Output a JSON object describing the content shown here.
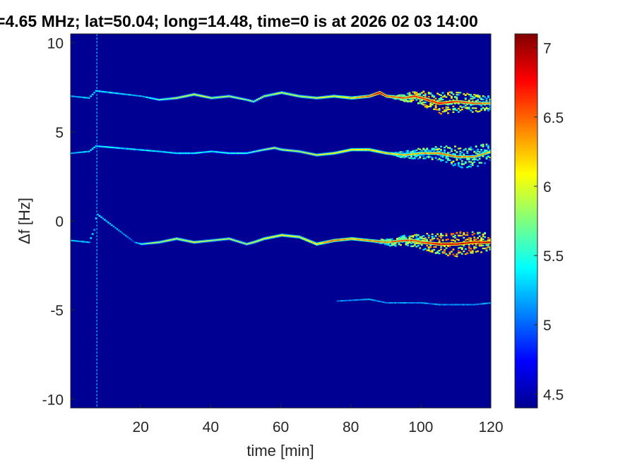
{
  "chart_data": {
    "type": "heatmap",
    "title": "=4.65 MHz;  lat=50.04; long=14.48, time=0 is at 2026 02 03 14:00",
    "xlabel": "time [min]",
    "ylabel": "Δf [Hz]",
    "xlim": [
      0,
      120
    ],
    "ylim": [
      -10.5,
      10.5
    ],
    "xticks": [
      20,
      40,
      60,
      80,
      100,
      120
    ],
    "xtick_labels": [
      "20",
      "40",
      "60",
      "80",
      "100",
      "120"
    ],
    "yticks": [
      10,
      5,
      0,
      -5,
      -10
    ],
    "ytick_labels": [
      "10",
      "5",
      "0",
      "-5",
      "-10"
    ],
    "colorbar": {
      "range": [
        4.4,
        7.1
      ],
      "ticks": [
        7,
        6.5,
        6,
        5.5,
        5,
        4.5
      ],
      "tick_labels": [
        "7",
        "6.5",
        "6",
        "5.5",
        "5",
        "4.5"
      ],
      "colormap": "jet"
    },
    "background_value": 4.45,
    "vertical_lines": [
      {
        "x": 7.5,
        "value": 5.2
      }
    ],
    "traces": [
      {
        "x": [
          0,
          5,
          7,
          20,
          25,
          30,
          35,
          40,
          45,
          50,
          52,
          55,
          60,
          65,
          70,
          75,
          80,
          85,
          88,
          90,
          95,
          98,
          100,
          105,
          110,
          115,
          120
        ],
        "y": [
          7.0,
          6.9,
          7.3,
          7.0,
          6.8,
          6.9,
          7.1,
          6.9,
          7.0,
          6.8,
          6.7,
          7.0,
          7.2,
          7.0,
          6.9,
          7.0,
          6.9,
          7.0,
          7.2,
          7.0,
          6.9,
          7.0,
          6.9,
          6.6,
          6.7,
          6.6,
          6.6
        ],
        "peak": [
          5.2,
          5.3,
          5.4,
          5.2,
          5.6,
          5.8,
          5.9,
          5.8,
          5.8,
          5.7,
          5.7,
          5.8,
          5.9,
          5.9,
          5.9,
          6.0,
          6.2,
          6.4,
          6.8,
          6.5,
          6.5,
          6.7,
          6.7,
          6.8,
          6.6,
          6.5,
          6.3
        ],
        "spread": [
          0,
          0,
          0,
          0,
          0,
          0,
          0,
          0,
          0,
          0,
          0,
          0,
          0,
          0,
          0,
          0,
          0,
          0,
          0,
          0,
          0.2,
          0.3,
          0.4,
          0.6,
          0.6,
          0.5,
          0.4
        ]
      },
      {
        "x": [
          0,
          5,
          7,
          25,
          30,
          35,
          40,
          45,
          50,
          55,
          58,
          60,
          65,
          70,
          75,
          80,
          85,
          90,
          95,
          100,
          105,
          110,
          115,
          120
        ],
        "y": [
          3.8,
          3.9,
          4.2,
          3.9,
          3.8,
          3.8,
          3.9,
          3.8,
          3.8,
          4.0,
          4.1,
          4.0,
          3.9,
          3.7,
          3.8,
          4.0,
          4.0,
          3.8,
          3.7,
          3.8,
          3.8,
          3.6,
          3.6,
          3.9
        ],
        "peak": [
          5.2,
          5.3,
          5.4,
          5.3,
          5.4,
          5.4,
          5.4,
          5.5,
          5.5,
          5.7,
          5.8,
          5.8,
          5.8,
          5.9,
          6.0,
          6.1,
          6.2,
          6.1,
          6.2,
          6.3,
          6.4,
          6.4,
          6.3,
          6.2
        ],
        "spread": [
          0,
          0,
          0,
          0,
          0,
          0,
          0,
          0,
          0,
          0,
          0,
          0,
          0,
          0,
          0,
          0,
          0,
          0,
          0.2,
          0.3,
          0.4,
          0.6,
          0.6,
          0.5
        ]
      },
      {
        "x": [
          0,
          5,
          6.5,
          7.2,
          18,
          20,
          25,
          30,
          35,
          40,
          45,
          50,
          52,
          55,
          60,
          65,
          70,
          75,
          80,
          85,
          90,
          95,
          98,
          100,
          105,
          110,
          115,
          120
        ],
        "y": [
          -1.1,
          -1.2,
          -0.5,
          0.4,
          -1.2,
          -1.3,
          -1.2,
          -1.0,
          -1.2,
          -1.1,
          -1.0,
          -1.3,
          -1.2,
          -1.0,
          -0.8,
          -0.9,
          -1.3,
          -1.1,
          -1.0,
          -1.1,
          -1.2,
          -1.1,
          -1.1,
          -1.2,
          -1.3,
          -1.3,
          -1.2,
          -1.2
        ],
        "peak": [
          5.2,
          5.3,
          5.3,
          5.4,
          5.0,
          5.6,
          5.8,
          5.9,
          5.9,
          5.8,
          5.8,
          5.8,
          5.9,
          6.0,
          6.0,
          6.0,
          6.2,
          6.4,
          6.3,
          6.3,
          6.4,
          6.5,
          6.6,
          6.6,
          6.8,
          6.9,
          6.9,
          6.8
        ],
        "spread": [
          0,
          0,
          0,
          0,
          0,
          0,
          0,
          0,
          0,
          0,
          0,
          0,
          0,
          0,
          0,
          0,
          0,
          0,
          0,
          0,
          0.2,
          0.3,
          0.4,
          0.5,
          0.6,
          0.7,
          0.6,
          0.5
        ]
      },
      {
        "x": [
          76,
          85,
          90,
          95,
          100,
          105,
          110,
          115,
          120
        ],
        "y": [
          -4.5,
          -4.4,
          -4.6,
          -4.6,
          -4.6,
          -4.7,
          -4.7,
          -4.7,
          -4.6
        ],
        "peak": [
          5.1,
          5.1,
          5.1,
          5.1,
          5.1,
          5.1,
          5.1,
          5.1,
          5.2
        ],
        "spread": [
          0,
          0,
          0,
          0,
          0,
          0,
          0,
          0,
          0
        ]
      }
    ]
  }
}
